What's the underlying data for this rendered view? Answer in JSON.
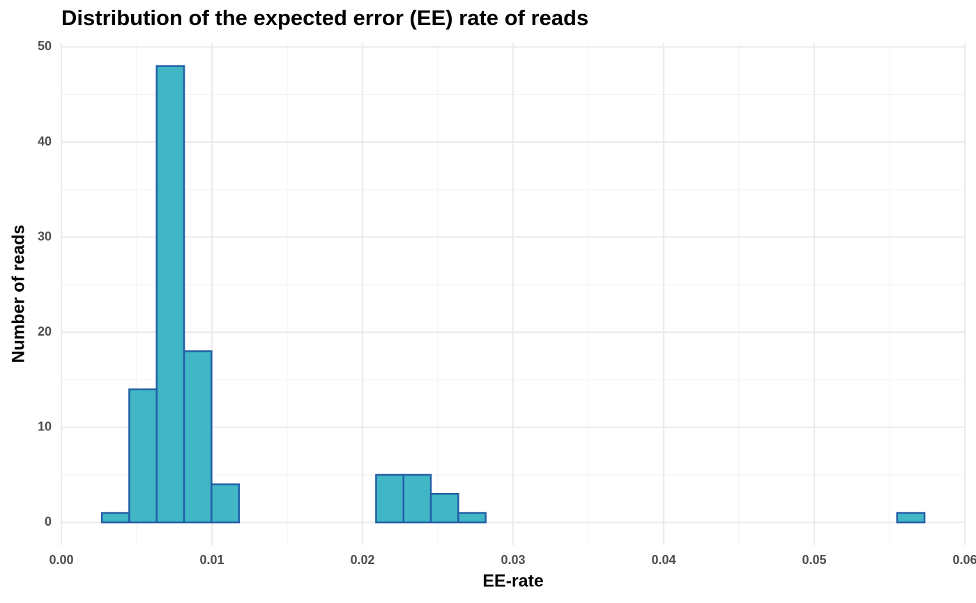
{
  "chart_data": {
    "type": "histogram",
    "title": "Distribution of the expected error (EE) rate of reads",
    "xlabel": "EE-rate",
    "ylabel": "Number of reads",
    "bins": [
      0.00269,
      0.00451,
      0.00633,
      0.00815,
      0.00997,
      0.0118,
      0.01362,
      0.01544,
      0.01726,
      0.01908,
      0.0209,
      0.02272,
      0.02454,
      0.02636,
      0.02818,
      0.03001,
      0.03183,
      0.03365,
      0.03547,
      0.03729,
      0.03911,
      0.04093,
      0.04275,
      0.04457,
      0.04639,
      0.04822,
      0.05004,
      0.05186,
      0.05368,
      0.0555,
      0.05732
    ],
    "values": [
      1,
      14,
      48,
      18,
      4,
      0,
      0,
      0,
      0,
      0,
      5,
      5,
      3,
      1,
      0,
      0,
      0,
      0,
      0,
      0,
      0,
      0,
      0,
      0,
      0,
      0,
      0,
      0,
      0,
      1
    ],
    "color": "#41b6c4",
    "edge_color": "#225ea8",
    "xlim": [
      0,
      0.06
    ],
    "xticks": [
      {
        "value": 0,
        "label": "0.00"
      },
      0.01,
      0.02,
      0.03,
      0.04,
      0.05,
      0.06
    ],
    "ylim": [
      -2.4,
      50.4
    ],
    "yticks": [
      0,
      10,
      20,
      30,
      40,
      50
    ],
    "grid": true,
    "minor_grid": true
  }
}
